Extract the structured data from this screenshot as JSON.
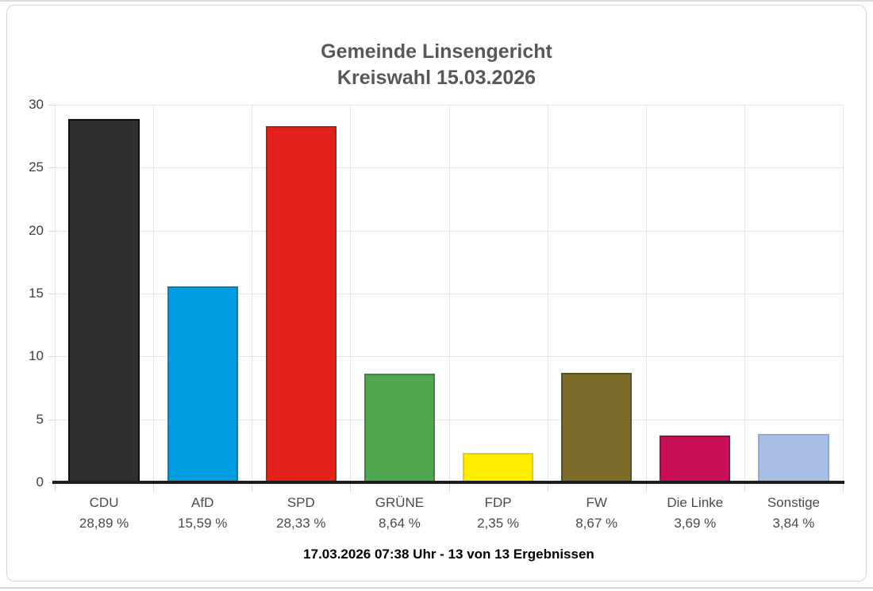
{
  "chart_data": {
    "type": "bar",
    "title": "Gemeinde Linsengericht",
    "subtitle": "Kreiswahl 15.03.2026",
    "categories": [
      "CDU",
      "AfD",
      "SPD",
      "GRÜNE",
      "FDP",
      "FW",
      "Die Linke",
      "Sonstige"
    ],
    "values": [
      28.89,
      15.59,
      28.33,
      8.64,
      2.35,
      8.67,
      3.69,
      3.84
    ],
    "value_labels": [
      "28,89 %",
      "15,59 %",
      "28,33 %",
      "8,64 %",
      "2,35 %",
      "8,67 %",
      "3,69 %",
      "3,84 %"
    ],
    "bar_colors": [
      "#312f30",
      "#009ee0",
      "#e32119",
      "#4fa850",
      "#ffed00",
      "#7b6c2a",
      "#c80f58",
      "#a9bce3"
    ],
    "bar_border_colors": [
      "#0d0d0d",
      "#0081bb",
      "#ba1a14",
      "#3c8540",
      "#e3cf00",
      "#5a4f1e",
      "#9d0c45",
      "#93a7d8"
    ],
    "xlabel": "",
    "ylabel": "",
    "ylim": [
      0,
      30
    ],
    "yticks": [
      0,
      5,
      10,
      15,
      20,
      25,
      30
    ],
    "grid": true,
    "legend": "none"
  },
  "footer": {
    "status_text": "17.03.2026 07:38 Uhr - 13 von 13 Ergebnissen"
  },
  "style_colors": {
    "title_text": "#58585a",
    "axis_text": "#3f3f3f",
    "category_text": "#4a4a4a",
    "gridline": "#e6e6e6",
    "baseline": "#1b1b1b",
    "card_border": "#d5d5d5"
  }
}
